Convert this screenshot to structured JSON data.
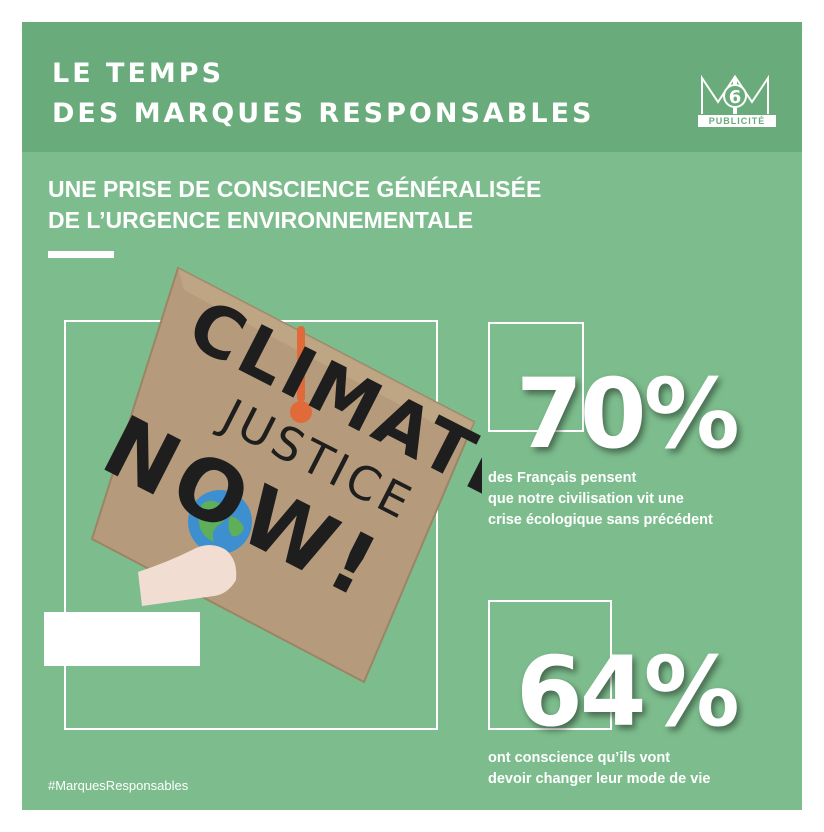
{
  "header": {
    "title_line1": "LE TEMPS",
    "title_line2": "DES MARQUES RESPONSABLES",
    "logo_text": "6",
    "logo_badge": "PUBLICITÉ"
  },
  "subtitle": {
    "line1": "UNE PRISE DE CONSCIENCE GÉNÉRALISÉE",
    "line2": "DE L’URGENCE ENVIRONNEMENTALE"
  },
  "sign": {
    "line1": "CLIMATE",
    "line2": "JUSTICE",
    "line3": "NOW!"
  },
  "stats": [
    {
      "value": "70%",
      "lines": [
        "des Français pensent",
        "que notre civilisation vit une",
        "crise écologique sans précédent"
      ]
    },
    {
      "value": "64%",
      "lines": [
        "ont conscience qu’ils vont",
        "devoir changer leur mode de vie"
      ]
    }
  ],
  "hashtag": "#MarquesResponsables",
  "colors": {
    "background": "#7dbd8d",
    "header": "#6aab7b",
    "text": "#ffffff",
    "cardboard": "#b59b7b",
    "ink": "#1e1e1e",
    "thermometer": "#e06a3a"
  }
}
